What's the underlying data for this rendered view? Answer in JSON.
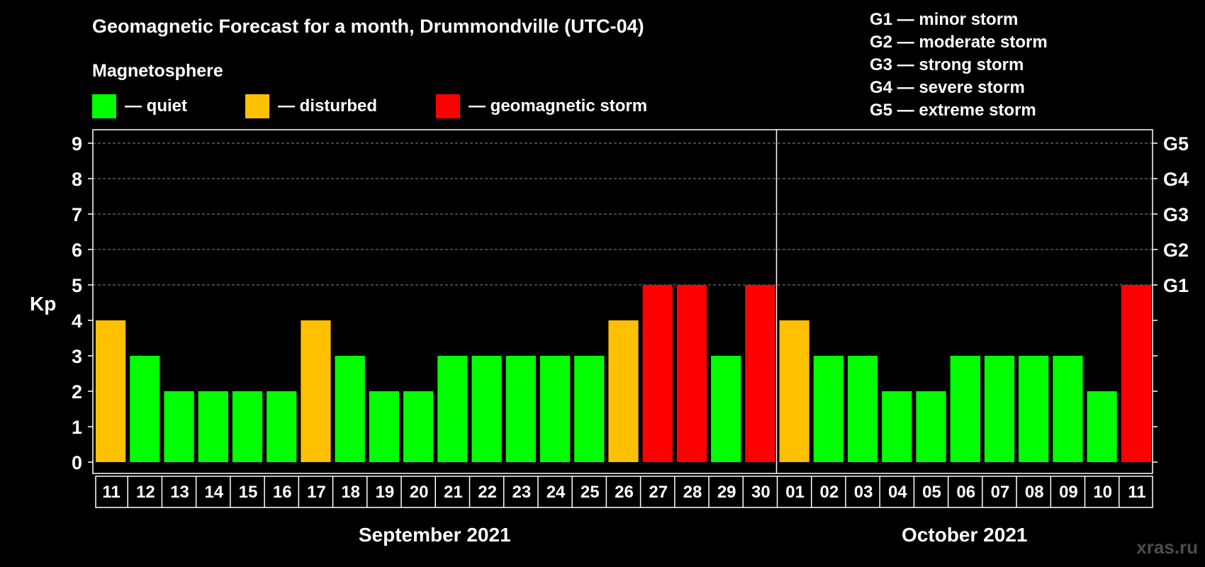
{
  "chart_data": {
    "type": "bar",
    "title": "Geomagnetic Forecast for a month, Drummondville (UTC-04)",
    "subtitle": "Magnetosphere",
    "ylabel": "Kp",
    "ylim": [
      0,
      9
    ],
    "yticks": [
      "0",
      "1",
      "2",
      "3",
      "4",
      "5",
      "6",
      "7",
      "8",
      "9"
    ],
    "right_axis": [
      {
        "kp": 5,
        "label": "G1"
      },
      {
        "kp": 6,
        "label": "G2"
      },
      {
        "kp": 7,
        "label": "G3"
      },
      {
        "kp": 8,
        "label": "G4"
      },
      {
        "kp": 9,
        "label": "G5"
      }
    ],
    "grid": "dashed horizontal at Kp 5-9",
    "categories": [
      "11",
      "12",
      "13",
      "14",
      "15",
      "16",
      "17",
      "18",
      "19",
      "20",
      "21",
      "22",
      "23",
      "24",
      "25",
      "26",
      "27",
      "28",
      "29",
      "30",
      "01",
      "02",
      "03",
      "04",
      "05",
      "06",
      "07",
      "08",
      "09",
      "10",
      "11"
    ],
    "values": [
      4,
      3,
      2,
      2,
      2,
      2,
      4,
      3,
      2,
      2,
      3,
      3,
      3,
      3,
      3,
      4,
      5,
      5,
      3,
      5,
      4,
      3,
      3,
      2,
      2,
      3,
      3,
      3,
      3,
      2,
      5
    ],
    "months": [
      {
        "label": "September 2021",
        "start": 0,
        "end": 19
      },
      {
        "label": "October 2021",
        "start": 20,
        "end": 30
      }
    ],
    "legend": [
      {
        "key": "quiet",
        "label": "— quiet",
        "color": "#00ff00"
      },
      {
        "key": "disturbed",
        "label": "— disturbed",
        "color": "#ffc000"
      },
      {
        "key": "storm",
        "label": "— geomagnetic storm",
        "color": "#ff0000"
      }
    ],
    "storm_scale": [
      "G1 — minor storm",
      "G2 — moderate storm",
      "G3 — strong storm",
      "G4 — severe storm",
      "G5 — extreme storm"
    ]
  },
  "watermark": "xras.ru"
}
